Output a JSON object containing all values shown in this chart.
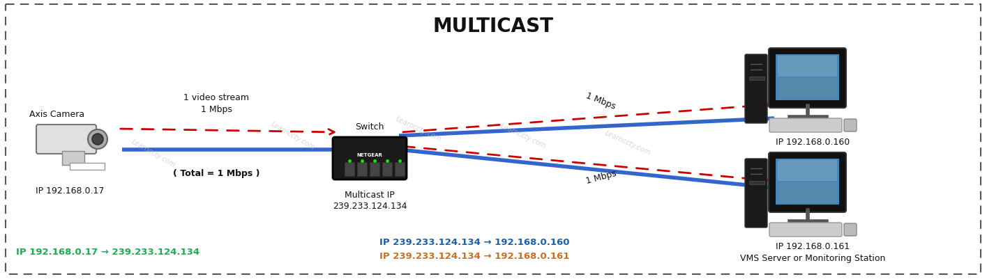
{
  "title": "MULTICAST",
  "title_fontsize": 20,
  "title_fontweight": "bold",
  "bg_color": "#ffffff",
  "border_color": "#555555",
  "watermark_text": "Learnccty.com",
  "camera_label": "Axis Camera",
  "camera_ip": "IP 192.168.0.17",
  "stream_label1": "1 video stream",
  "stream_label2": "1 Mbps",
  "total_label": "( Total = 1 Mbps )",
  "switch_label": "Switch",
  "switch_ip1": "Multicast IP",
  "switch_ip2": "239.233.124.134",
  "pc1_label": "IP 192.168.0.160",
  "pc1_mbps": "1 Mbps",
  "pc2_label": "IP 192.168.0.161",
  "pc2_mbps": "1 Mbps",
  "vms_label": "VMS Server or Monitoring Station",
  "bottom_green_text": "IP 192.168.0.17 → 239.233.124.134",
  "bottom_blue_text": "IP 239.233.124.134 → 192.168.0.160",
  "bottom_orange_text": "IP 239.233.124.134 → 192.168.0.161",
  "green_color": "#22aa55",
  "blue_color": "#1a5fa8",
  "orange_color": "#c87020",
  "red_color": "#cc0000",
  "dark_color": "#111111",
  "line_blue": "#3366cc",
  "line_red": "#cc0000",
  "gray_color": "#888888"
}
